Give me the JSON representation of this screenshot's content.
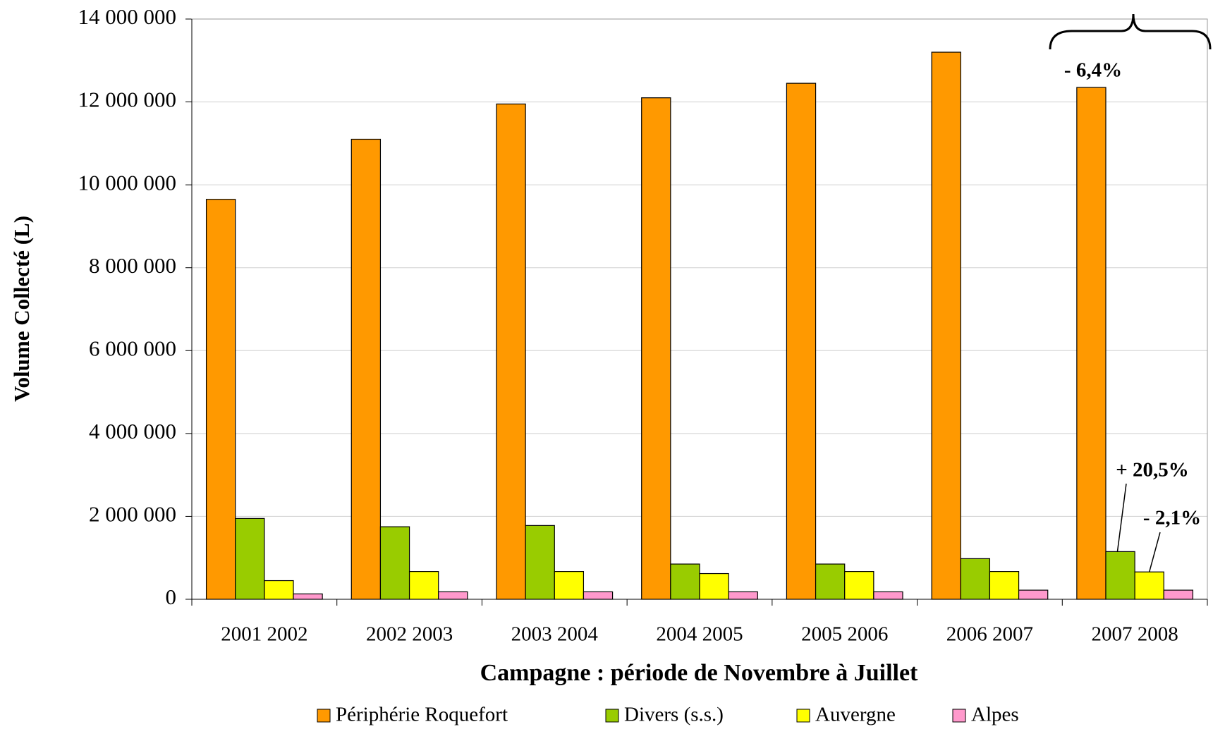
{
  "chart_data": {
    "type": "bar",
    "y_label": "Volume Collecté (L)",
    "x_label": "Campagne : période de Novembre à Juillet",
    "categories": [
      "2001 2002",
      "2002 2003",
      "2003 2004",
      "2004 2005",
      "2005 2006",
      "2006 2007",
      "2007 2008"
    ],
    "series": [
      {
        "name": "Périphérie Roquefort",
        "color": "#ff9900",
        "values": [
          9650000,
          11100000,
          11950000,
          12100000,
          12450000,
          13200000,
          12350000
        ]
      },
      {
        "name": "Divers (s.s.)",
        "color": "#99cc00",
        "values": [
          1950000,
          1750000,
          1780000,
          850000,
          850000,
          980000,
          1150000
        ]
      },
      {
        "name": "Auvergne",
        "color": "#ffff00",
        "values": [
          450000,
          670000,
          670000,
          620000,
          670000,
          670000,
          660000
        ]
      },
      {
        "name": "Alpes",
        "color": "#ff99cc",
        "values": [
          130000,
          180000,
          180000,
          180000,
          180000,
          220000,
          220000
        ]
      }
    ],
    "ylim": [
      0,
      14000000
    ],
    "yticks": [
      0,
      {
        "value": 2000000,
        "label": "2 000 000"
      },
      {
        "value": 4000000,
        "label": "4 000 000"
      },
      {
        "value": 6000000,
        "label": "6 000 000"
      },
      {
        "value": 8000000,
        "label": "8 000 000"
      },
      {
        "value": 10000000,
        "label": "10 000 000"
      },
      {
        "value": 12000000,
        "label": "12 000 000"
      },
      {
        "value": 14000000,
        "label": "14 000 000"
      }
    ],
    "grid": true,
    "legend": "bottom",
    "annotations": [
      "- 6,4%",
      "+ 20,5%",
      "- 2,1%"
    ]
  }
}
